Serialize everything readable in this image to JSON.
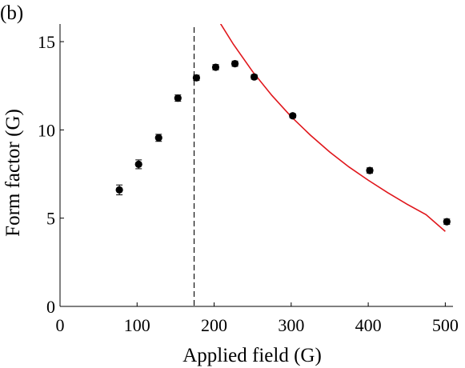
{
  "chart_data": {
    "type": "scatter",
    "panel_label": "(b)",
    "title": "",
    "xlabel": "Applied field (G)",
    "ylabel": "Form factor (G)",
    "xlim": [
      0,
      510
    ],
    "ylim": [
      0,
      16
    ],
    "xticks": [
      0,
      100,
      200,
      300,
      400,
      500
    ],
    "yticks": [
      0,
      5,
      10,
      15
    ],
    "grid": false,
    "legend": "none",
    "series": [
      {
        "kind": "points-with-errorbars",
        "color": "#000000",
        "x": [
          77,
          102,
          128,
          153,
          177,
          202,
          227,
          252,
          302,
          402,
          502
        ],
        "y": [
          6.6,
          8.05,
          9.55,
          11.8,
          12.95,
          13.55,
          13.75,
          13.0,
          10.8,
          7.7,
          4.8
        ],
        "yerr": [
          0.28,
          0.25,
          0.2,
          0.18,
          0.15,
          0.15,
          0.15,
          0.13,
          0.12,
          0.15,
          0.15
        ]
      },
      {
        "kind": "fit-curve",
        "color": "#e0161b",
        "x": [
          200,
          225,
          250,
          275,
          300,
          325,
          350,
          375,
          400,
          425,
          450,
          475,
          500
        ],
        "y": [
          16.6,
          14.85,
          13.3,
          11.95,
          10.75,
          9.7,
          8.75,
          7.9,
          7.15,
          6.45,
          5.8,
          5.2,
          4.25
        ]
      }
    ],
    "annotations": [
      {
        "kind": "vertical-dashed-line",
        "x": 174,
        "color": "#000000"
      }
    ]
  }
}
